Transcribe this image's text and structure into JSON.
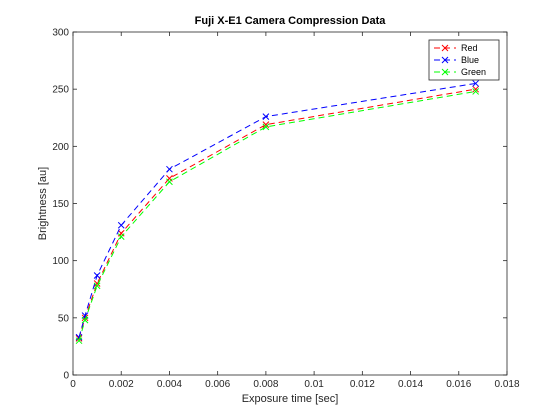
{
  "chart_data": {
    "type": "line",
    "title": "Fuji X-E1 Camera Compression Data",
    "xlabel": "Exposure time [sec]",
    "ylabel": "Brightness [au]",
    "xlim": [
      0,
      0.018
    ],
    "ylim": [
      0,
      300
    ],
    "xticks": [
      0,
      0.002,
      0.004,
      0.006,
      0.008,
      0.01,
      0.012,
      0.014,
      0.016,
      0.018
    ],
    "xtick_labels": [
      "0",
      "0.002",
      "0.004",
      "0.006",
      "0.008",
      "0.01",
      "0.012",
      "0.014",
      "0.016",
      "0.018"
    ],
    "yticks": [
      0,
      50,
      100,
      150,
      200,
      250,
      300
    ],
    "ytick_labels": [
      "0",
      "50",
      "100",
      "150",
      "200",
      "250",
      "300"
    ],
    "grid": false,
    "legend_position": "top-right",
    "x": [
      0.00025,
      0.0005,
      0.001,
      0.002,
      0.004,
      0.008,
      0.0167
    ],
    "series": [
      {
        "name": "Red",
        "color": "#ff0000",
        "marker": "x",
        "linestyle": "dashed",
        "values": [
          32,
          50,
          80,
          124,
          172,
          219,
          250
        ]
      },
      {
        "name": "Blue",
        "color": "#0000ff",
        "marker": "x",
        "linestyle": "dashed",
        "values": [
          33,
          52,
          87,
          131,
          180,
          226,
          255
        ]
      },
      {
        "name": "Green",
        "color": "#00ff00",
        "marker": "x",
        "linestyle": "dashed",
        "values": [
          30,
          48,
          78,
          121,
          169,
          217,
          248
        ]
      }
    ]
  }
}
